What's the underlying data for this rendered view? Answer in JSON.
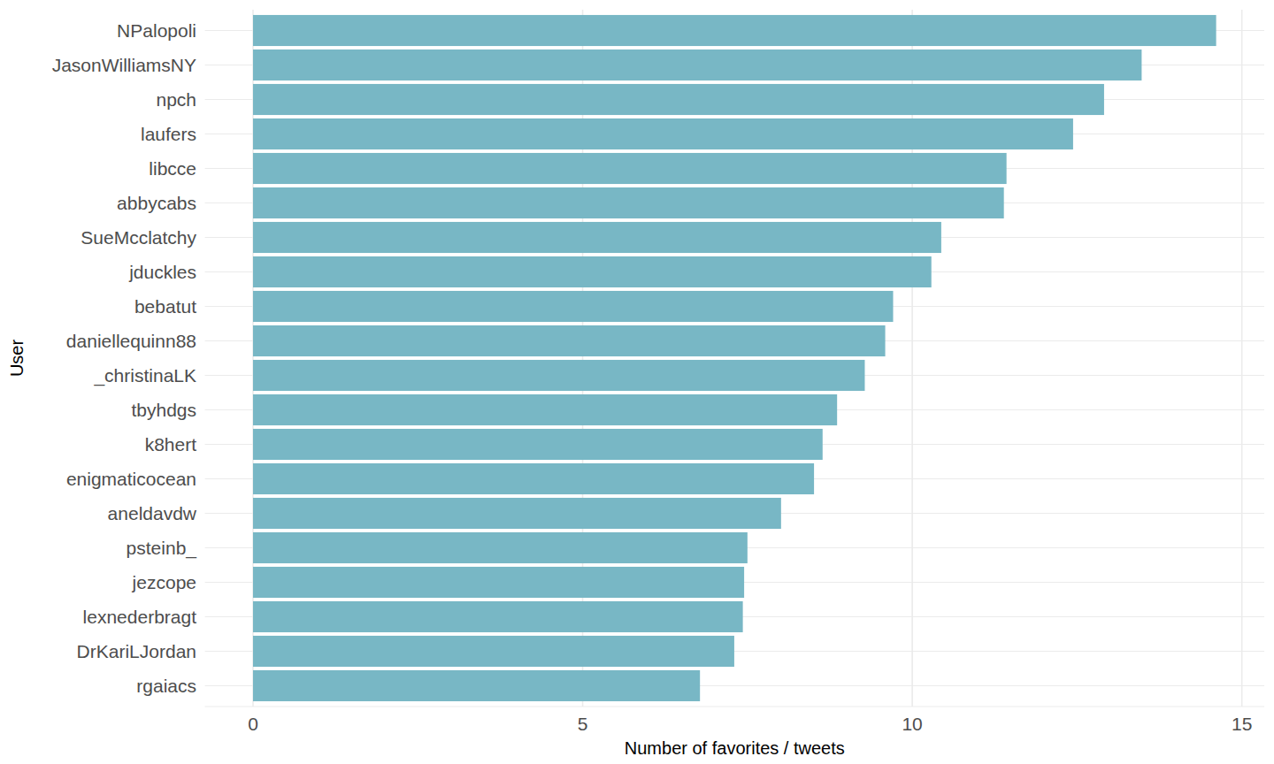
{
  "chart_data": {
    "type": "bar",
    "orientation": "horizontal",
    "x_label": "Number of favorites / tweets",
    "y_label": "User",
    "categories": [
      "NPalopoli",
      "JasonWilliamsNY",
      "npch",
      "laufers",
      "libcce",
      "abbycabs",
      "SueMcclatchy",
      "jduckles",
      "bebatut",
      "daniellequinn88",
      "_christinaLK",
      "tbyhdgs",
      "k8hert",
      "enigmaticocean",
      "aneldavdw",
      "psteinb_",
      "jezcope",
      "lexnederbragt",
      "DrKariLJordan",
      "rgaiacs"
    ],
    "values": [
      14.61,
      13.48,
      12.91,
      12.44,
      11.43,
      11.39,
      10.44,
      10.29,
      9.71,
      9.59,
      9.28,
      8.86,
      8.64,
      8.51,
      8.01,
      7.5,
      7.45,
      7.43,
      7.3,
      6.78
    ],
    "color": "#78b7c5",
    "xlim": [
      -0.73,
      15.34
    ],
    "xticks": [
      0,
      5,
      10,
      15
    ],
    "grid": true
  }
}
